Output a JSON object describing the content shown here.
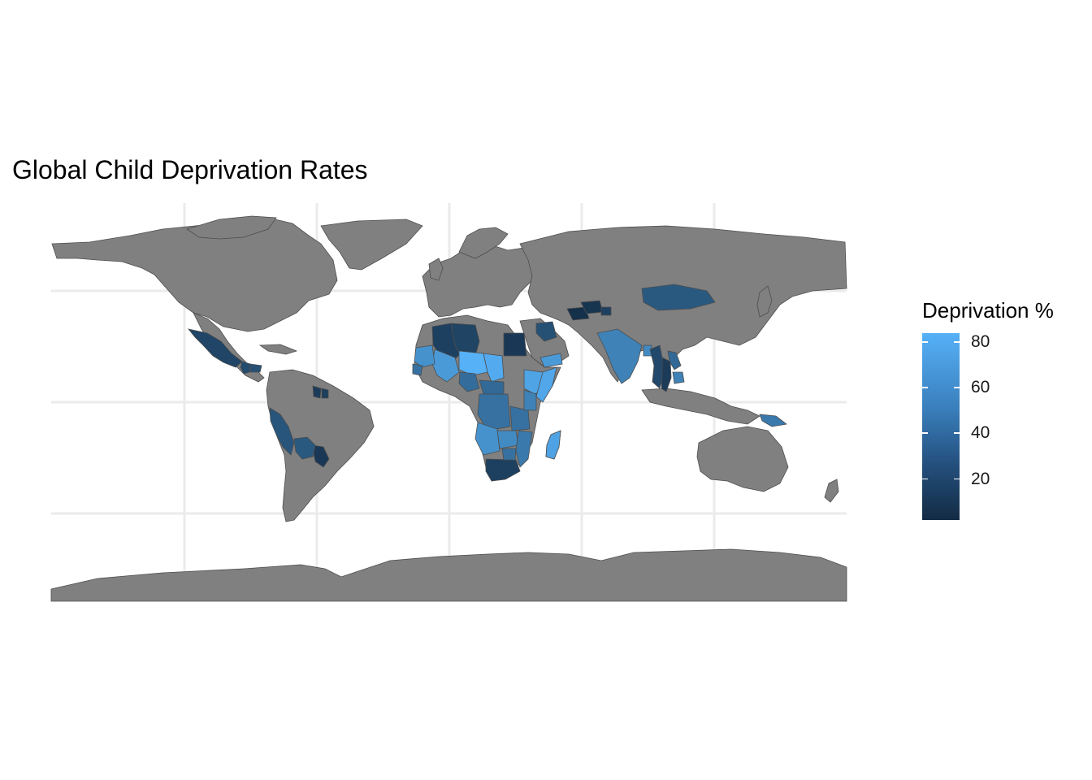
{
  "chart": {
    "title": "Global Child Deprivation Rates",
    "legend_title": "Deprivation %",
    "legend_ticks": [
      {
        "label": "80",
        "value": 80
      },
      {
        "label": "60",
        "value": 60
      },
      {
        "label": "40",
        "value": 40
      },
      {
        "label": "20",
        "value": 20
      }
    ],
    "scale": {
      "min": 2,
      "max": 84,
      "low_color": "#132b43",
      "high_color": "#56b1f7"
    },
    "missing_color": "#808080",
    "border_color": "#4d4d4d",
    "grid_color": "#ebebeb"
  },
  "chart_data": {
    "type": "choropleth",
    "title": "Global Child Deprivation Rates",
    "legend_title": "Deprivation %",
    "range": [
      2,
      84
    ],
    "values": [
      {
        "region": "Mexico",
        "value": 18
      },
      {
        "region": "Guatemala",
        "value": 22
      },
      {
        "region": "Honduras",
        "value": 25
      },
      {
        "region": "Guyana",
        "value": 12
      },
      {
        "region": "Suriname",
        "value": 14
      },
      {
        "region": "Peru",
        "value": 28
      },
      {
        "region": "Paraguay",
        "value": 10
      },
      {
        "region": "Bolivia",
        "value": 30
      },
      {
        "region": "Algeria",
        "value": 15
      },
      {
        "region": "Libya",
        "value": 17
      },
      {
        "region": "Egypt",
        "value": 10
      },
      {
        "region": "Mali",
        "value": 70
      },
      {
        "region": "Niger",
        "value": 84
      },
      {
        "region": "Chad",
        "value": 80
      },
      {
        "region": "Mauritania",
        "value": 65
      },
      {
        "region": "Senegal",
        "value": 45
      },
      {
        "region": "Nigeria",
        "value": 42
      },
      {
        "region": "Ethiopia",
        "value": 76
      },
      {
        "region": "Somalia",
        "value": 78
      },
      {
        "region": "DR Congo",
        "value": 45
      },
      {
        "region": "Central African Republic",
        "value": 40
      },
      {
        "region": "Angola",
        "value": 65
      },
      {
        "region": "Tanzania",
        "value": 45
      },
      {
        "region": "Kenya",
        "value": 55
      },
      {
        "region": "Zambia",
        "value": 60
      },
      {
        "region": "Mozambique",
        "value": 50
      },
      {
        "region": "Madagascar",
        "value": 75
      },
      {
        "region": "South Africa",
        "value": 15
      },
      {
        "region": "Zimbabwe",
        "value": 45
      },
      {
        "region": "Iraq",
        "value": 25
      },
      {
        "region": "Yemen",
        "value": 70
      },
      {
        "region": "Turkmenistan",
        "value": 5
      },
      {
        "region": "Uzbekistan",
        "value": 8
      },
      {
        "region": "Tajikistan",
        "value": 15
      },
      {
        "region": "India",
        "value": 55
      },
      {
        "region": "Bangladesh",
        "value": 60
      },
      {
        "region": "Myanmar",
        "value": 20
      },
      {
        "region": "Laos",
        "value": 40
      },
      {
        "region": "Thailand",
        "value": 12
      },
      {
        "region": "Cambodia",
        "value": 55
      },
      {
        "region": "Mongolia",
        "value": 30
      },
      {
        "region": "Papua New Guinea",
        "value": 50
      }
    ]
  }
}
